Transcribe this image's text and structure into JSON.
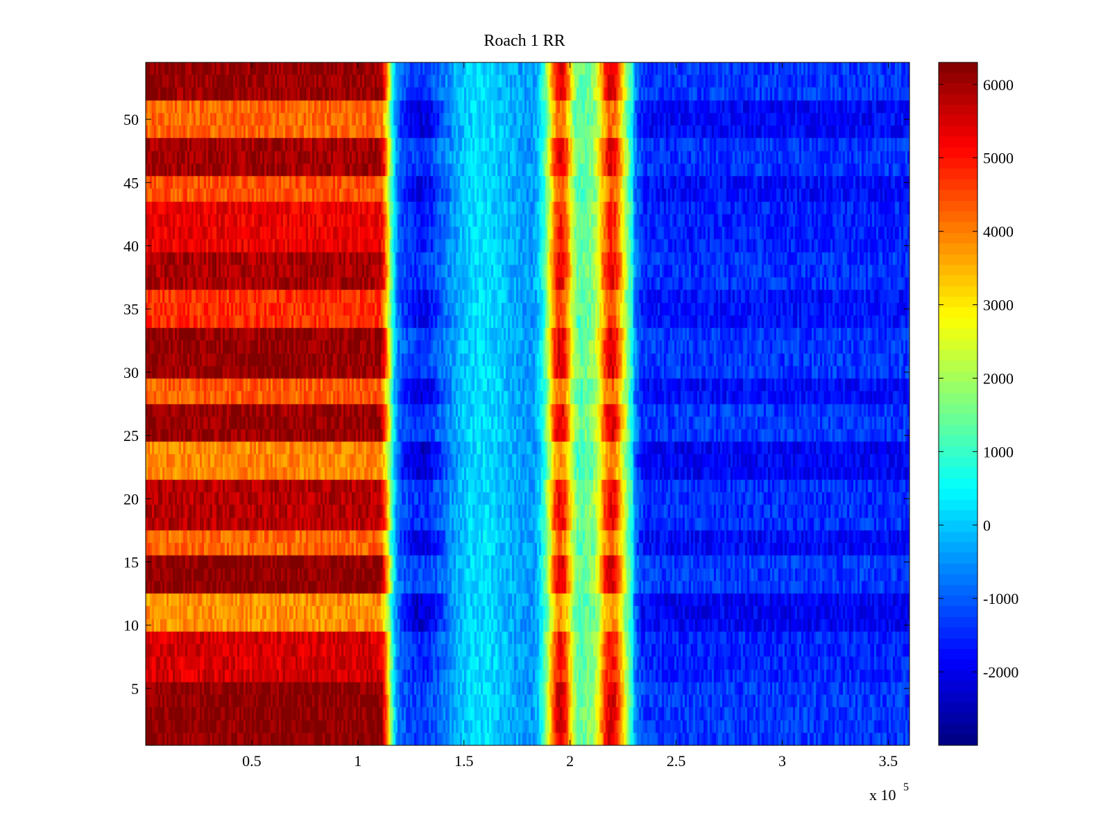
{
  "chart_data": {
    "type": "heatmap",
    "title": "Roach 1 RR",
    "xlabel": "",
    "ylabel": "",
    "x_multiplier_label": "x 10",
    "x_multiplier_exponent": "5",
    "xlim": [
      0,
      360000
    ],
    "ylim": [
      0.5,
      54.5
    ],
    "x_ticks": [
      0.5,
      1,
      1.5,
      2,
      2.5,
      3,
      3.5
    ],
    "x_tick_labels": [
      "0.5",
      "1",
      "1.5",
      "2",
      "2.5",
      "3",
      "3.5"
    ],
    "y_ticks": [
      5,
      10,
      15,
      20,
      25,
      30,
      35,
      40,
      45,
      50
    ],
    "y_tick_labels": [
      "5",
      "10",
      "15",
      "20",
      "25",
      "30",
      "35",
      "40",
      "45",
      "50"
    ],
    "colormap": "jet",
    "color_range": [
      -3000,
      6300
    ],
    "colorbar_ticks": [
      6000,
      5000,
      4000,
      3000,
      2000,
      1000,
      0,
      -1000,
      -2000
    ],
    "colorbar_tick_labels": [
      "6000",
      "5000",
      "4000",
      "3000",
      "2000",
      "1000",
      "0",
      "-1000",
      "-2000"
    ],
    "x_segments": [
      {
        "name": "initial plateau",
        "x_range": [
          0,
          115000
        ],
        "approx_value_range": [
          3000,
          6300
        ]
      },
      {
        "name": "trough",
        "x_range": [
          118000,
          186000
        ],
        "approx_value_range": [
          -2800,
          500
        ]
      },
      {
        "name": "peak 1",
        "x_range": [
          187000,
          204000
        ],
        "approx_value_range": [
          4000,
          6300
        ]
      },
      {
        "name": "valley",
        "x_range": [
          204000,
          211000
        ],
        "approx_value_range": [
          500,
          2000
        ]
      },
      {
        "name": "peak 2",
        "x_range": [
          211000,
          228000
        ],
        "approx_value_range": [
          4000,
          6300
        ]
      },
      {
        "name": "late plateau",
        "x_range": [
          230000,
          360000
        ],
        "approx_value_range": [
          -2500,
          -500
        ]
      }
    ],
    "row_levels": [
      {
        "rows": "1-5",
        "plateau_value": 6200
      },
      {
        "rows": "6-9",
        "plateau_value": 5500
      },
      {
        "rows": "10-12",
        "plateau_value": 3800
      },
      {
        "rows": "13-15",
        "plateau_value": 6200
      },
      {
        "rows": "16-17",
        "plateau_value": 4200
      },
      {
        "rows": "18-21",
        "plateau_value": 5800
      },
      {
        "rows": "22-24",
        "plateau_value": 3900
      },
      {
        "rows": "25-27",
        "plateau_value": 6100
      },
      {
        "rows": "28-29",
        "plateau_value": 4300
      },
      {
        "rows": "30-33",
        "plateau_value": 6100
      },
      {
        "rows": "34-36",
        "plateau_value": 4700
      },
      {
        "rows": "37-39",
        "plateau_value": 5900
      },
      {
        "rows": "40-43",
        "plateau_value": 5300
      },
      {
        "rows": "44-45",
        "plateau_value": 4400
      },
      {
        "rows": "46-48",
        "plateau_value": 6000
      },
      {
        "rows": "49-51",
        "plateau_value": 4200
      },
      {
        "rows": "52-54",
        "plateau_value": 6100
      }
    ]
  }
}
